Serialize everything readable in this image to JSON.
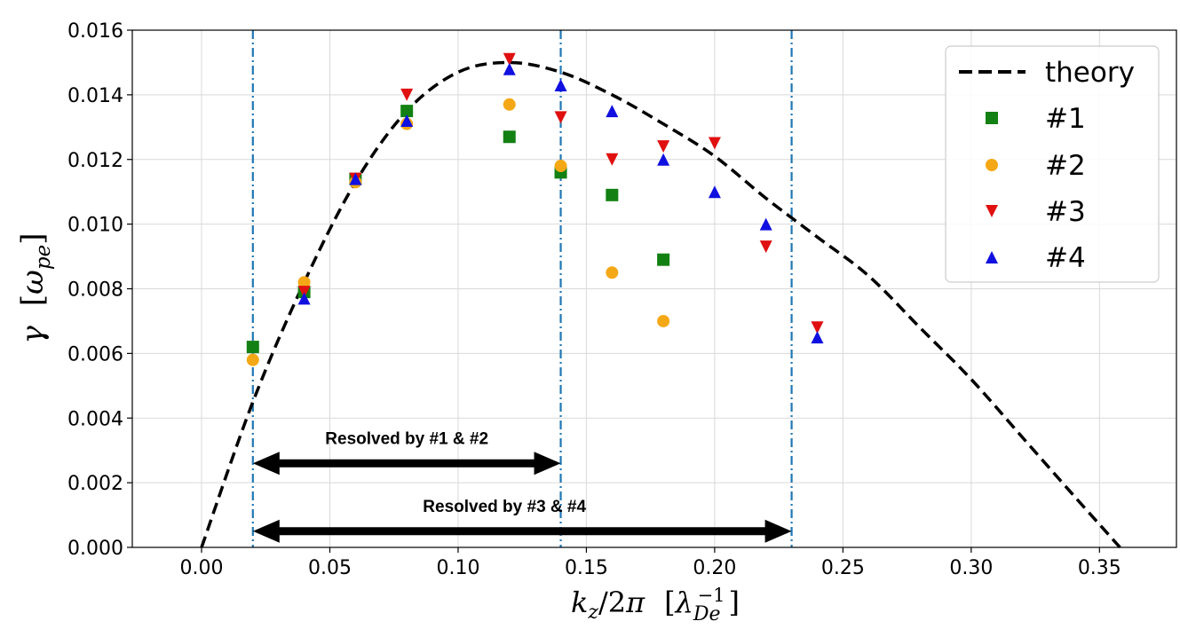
{
  "chart_data": {
    "type": "scatter",
    "title": "",
    "xlabel": "k_z/2π   [λ_De^-1]",
    "ylabel": "γ   [ω_pe]",
    "xlim": [
      -0.027,
      0.38
    ],
    "ylim": [
      0.0,
      0.016
    ],
    "x_ticks": [
      0.0,
      0.05,
      0.1,
      0.15,
      0.2,
      0.25,
      0.3,
      0.35
    ],
    "x_tick_labels": [
      "0.00",
      "0.05",
      "0.10",
      "0.15",
      "0.20",
      "0.25",
      "0.30",
      "0.35"
    ],
    "y_ticks": [
      0.0,
      0.002,
      0.004,
      0.006,
      0.008,
      0.01,
      0.012,
      0.014,
      0.016
    ],
    "y_tick_labels": [
      "0.000",
      "0.002",
      "0.004",
      "0.006",
      "0.008",
      "0.010",
      "0.012",
      "0.014",
      "0.016"
    ],
    "grid": true,
    "legend_position": "top-right",
    "theory": {
      "name": "theory",
      "style": "dashed",
      "color": "#000000",
      "x": [
        0.0,
        0.02,
        0.04,
        0.06,
        0.08,
        0.1,
        0.12,
        0.14,
        0.16,
        0.18,
        0.2,
        0.22,
        0.24,
        0.26,
        0.28,
        0.3,
        0.32,
        0.34,
        0.358
      ],
      "y": [
        0.0,
        0.0045,
        0.0082,
        0.0113,
        0.0135,
        0.0147,
        0.015,
        0.0147,
        0.014,
        0.0131,
        0.0121,
        0.0108,
        0.0096,
        0.0084,
        0.0068,
        0.0052,
        0.0034,
        0.0016,
        0.0
      ]
    },
    "series": [
      {
        "name": "#1",
        "marker": "square",
        "color": "#138013",
        "x": [
          0.02,
          0.04,
          0.06,
          0.08,
          0.12,
          0.14,
          0.16,
          0.18
        ],
        "y": [
          0.0062,
          0.0079,
          0.0114,
          0.0135,
          0.0127,
          0.0116,
          0.0109,
          0.0089
        ]
      },
      {
        "name": "#2",
        "marker": "circle",
        "color": "#f5a816",
        "x": [
          0.02,
          0.04,
          0.06,
          0.08,
          0.12,
          0.14,
          0.16,
          0.18
        ],
        "y": [
          0.0058,
          0.0082,
          0.0113,
          0.0131,
          0.0137,
          0.0118,
          0.0085,
          0.007
        ]
      },
      {
        "name": "#3",
        "marker": "triangle-down",
        "color": "#e01010",
        "x": [
          0.04,
          0.06,
          0.08,
          0.12,
          0.14,
          0.16,
          0.18,
          0.2,
          0.22,
          0.24
        ],
        "y": [
          0.0079,
          0.0114,
          0.014,
          0.0151,
          0.0133,
          0.012,
          0.0124,
          0.0125,
          0.0093,
          0.0068
        ]
      },
      {
        "name": "#4",
        "marker": "triangle-up",
        "color": "#1010e0",
        "x": [
          0.04,
          0.06,
          0.08,
          0.12,
          0.14,
          0.16,
          0.18,
          0.2,
          0.22,
          0.24
        ],
        "y": [
          0.0077,
          0.0114,
          0.0132,
          0.0148,
          0.0143,
          0.0135,
          0.012,
          0.011,
          0.01,
          0.0065
        ]
      }
    ],
    "vlines": {
      "x": [
        0.02,
        0.14,
        0.23
      ],
      "color": "#1f77b4",
      "style": "dash-dot"
    },
    "annotations": [
      {
        "text": "Resolved by #1 & #2",
        "x_start": 0.02,
        "x_end": 0.14,
        "y": 0.0026
      },
      {
        "text": "Resolved by #3 & #4",
        "x_start": 0.02,
        "x_end": 0.23,
        "y": 0.0005
      }
    ]
  }
}
